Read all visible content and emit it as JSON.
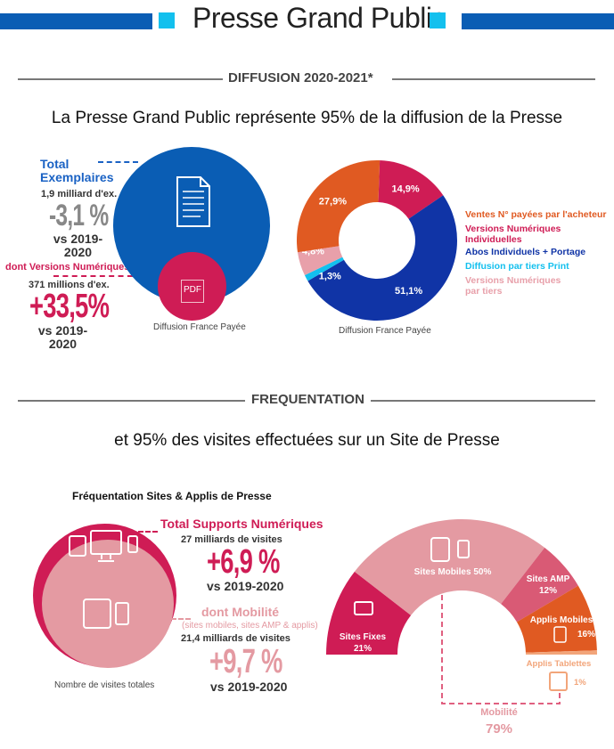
{
  "header": {
    "title": "Presse Grand Public",
    "colors": {
      "bar": "#0a5db4",
      "square": "#13c0ee"
    }
  },
  "diffusion": {
    "section_title": "DIFFUSION 2020-2021*",
    "subtitle": "La Presse Grand Public représente 95% de la diffusion de la Presse",
    "total": {
      "label": "Total Exemplaires",
      "amount": "1,9 milliard d'ex.",
      "change": "-3,1 %",
      "period": "vs 2019-2020"
    },
    "digital": {
      "label": "dont Versions Numériques",
      "amount": "371 millions d'ex.",
      "change": "+33,5%",
      "period": "vs 2019-2020"
    },
    "circle_caption": "Diffusion France Payée",
    "pdf_icon_label": "PDF",
    "donut_caption": "Diffusion France Payée"
  },
  "chart_data": [
    {
      "type": "pie",
      "donut": true,
      "slices": [
        {
          "name": "Versions Numériques Individuelles",
          "value": 14.9,
          "label": "14,9%",
          "color": "#cf1c55"
        },
        {
          "name": "Abos Individuels + Portage",
          "value": 51.1,
          "label": "51,1%",
          "color": "#1034a6"
        },
        {
          "name": "Diffusion par tiers Print",
          "value": 1.3,
          "label": "1,3%",
          "color": "#13c0ee"
        },
        {
          "name": "Versions Numériques par tiers",
          "value": 4.8,
          "label": "4,8%",
          "color": "#e8a0aa"
        },
        {
          "name": "Ventes N° payées par l'acheteur",
          "value": 27.9,
          "label": "27,9%",
          "color": "#e05a22"
        }
      ],
      "legend": [
        {
          "text": "Ventes N° payées par l'acheteur",
          "color": "#e05a22"
        },
        {
          "text": "Versions Numériques Individuelles",
          "color": "#cf1c55"
        },
        {
          "text": "Abos Individuels + Portage",
          "color": "#1034a6"
        },
        {
          "text": "Diffusion par tiers Print",
          "color": "#13c0ee"
        },
        {
          "text": "Versions Numériques par tiers",
          "color": "#e8a0aa"
        }
      ],
      "legend_position": "right"
    },
    {
      "type": "pie",
      "half_donut": true,
      "slices": [
        {
          "name": "Sites Fixes",
          "value": 21,
          "label": "21%",
          "color": "#cf1c55"
        },
        {
          "name": "Sites Mobiles",
          "value": 50,
          "label": "50%",
          "color": "#e49aa2"
        },
        {
          "name": "Sites AMP",
          "value": 12,
          "label": "12%",
          "color": "#d95a75"
        },
        {
          "name": "Applis Mobiles",
          "value": 16,
          "label": "16%",
          "color": "#e05a22"
        },
        {
          "name": "Applis Tablettes",
          "value": 1,
          "label": "1%",
          "color": "#f2a57a"
        }
      ],
      "annotation": {
        "label": "Mobilité",
        "value": "79%"
      }
    }
  ],
  "frequentation": {
    "section_title": "FREQUENTATION",
    "subtitle": "et 95% des visites effectuées sur un Site de Presse",
    "chart_title": "Fréquentation Sites & Applis de Presse",
    "total": {
      "label": "Total Supports Numériques",
      "amount": "27 milliards de visites",
      "change": "+6,9 %",
      "period": "vs 2019-2020"
    },
    "mobile": {
      "label": "dont Mobilité",
      "note": "(sites mobiles, sites AMP & applis)",
      "amount": "21,4 milliards de visites",
      "change": "+9,7 %",
      "period": "vs 2019-2020"
    },
    "circle_caption": "Nombre de visites totales"
  }
}
